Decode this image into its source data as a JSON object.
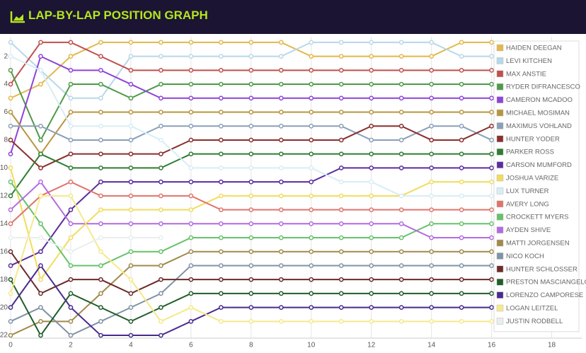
{
  "chart_data": {
    "type": "line",
    "title": "LAP-BY-LAP POSITION GRAPH",
    "x": [
      0,
      1,
      2,
      3,
      4,
      5,
      6,
      7,
      8,
      9,
      10,
      11,
      12,
      13,
      14,
      15,
      16
    ],
    "xlim": [
      0,
      19
    ],
    "xticks": [
      0,
      2,
      4,
      6,
      8,
      10,
      12,
      14,
      16,
      18
    ],
    "ylim": [
      22.2,
      0.6
    ],
    "yticks": [
      2,
      4,
      6,
      8,
      10,
      12,
      14,
      16,
      18,
      20,
      22
    ],
    "grid": true,
    "legend": "right",
    "series": [
      {
        "name": "HAIDEN DEEGAN",
        "color": "#e3b84a",
        "values": [
          5,
          4,
          2,
          1,
          1,
          1,
          1,
          1,
          1,
          1,
          2,
          2,
          2,
          2,
          2,
          1,
          1
        ]
      },
      {
        "name": "LEVI KITCHEN",
        "color": "#b7d8ea",
        "values": [
          1,
          3,
          5,
          5,
          2,
          2,
          2,
          2,
          2,
          2,
          1,
          1,
          1,
          1,
          1,
          2,
          2
        ]
      },
      {
        "name": "MAX ANSTIE",
        "color": "#c0504d",
        "values": [
          4,
          1,
          1,
          2,
          3,
          3,
          3,
          3,
          3,
          3,
          3,
          3,
          3,
          3,
          3,
          3,
          3
        ]
      },
      {
        "name": "RYDER DIFRANCESCO",
        "color": "#4e9a4a",
        "values": [
          3,
          8,
          4,
          4,
          5,
          4,
          4,
          4,
          4,
          4,
          4,
          4,
          4,
          4,
          4,
          4,
          4
        ]
      },
      {
        "name": "CAMERON MCADOO",
        "color": "#8e44d8",
        "values": [
          9,
          2,
          3,
          3,
          4,
          5,
          5,
          5,
          5,
          5,
          5,
          5,
          5,
          5,
          5,
          5,
          5
        ]
      },
      {
        "name": "MICHAEL MOSIMAN",
        "color": "#b8963e",
        "values": [
          6,
          9,
          6,
          6,
          6,
          6,
          6,
          6,
          6,
          6,
          6,
          6,
          6,
          6,
          6,
          6,
          6
        ]
      },
      {
        "name": "MAXIMUS VOHLAND",
        "color": "#8aa0b8",
        "values": [
          7,
          7,
          8,
          8,
          8,
          7,
          7,
          7,
          7,
          7,
          7,
          7,
          8,
          8,
          7,
          7,
          8
        ]
      },
      {
        "name": "HUNTER YODER",
        "color": "#8b2e2e",
        "values": [
          8,
          10,
          9,
          9,
          9,
          9,
          8,
          8,
          8,
          8,
          8,
          8,
          7,
          7,
          8,
          8,
          7
        ]
      },
      {
        "name": "PARKER ROSS",
        "color": "#2e7d32",
        "values": [
          12,
          9,
          10,
          10,
          10,
          10,
          9,
          9,
          9,
          9,
          9,
          9,
          9,
          9,
          9,
          9,
          9
        ]
      },
      {
        "name": "CARSON MUMFORD",
        "color": "#5b2c9e",
        "values": [
          17,
          16,
          13,
          11,
          11,
          11,
          11,
          11,
          11,
          11,
          11,
          10,
          10,
          10,
          10,
          10,
          10
        ]
      },
      {
        "name": "JOSHUA VARIZE",
        "color": "#f2dc5d",
        "values": [
          10,
          18,
          15,
          13,
          13,
          13,
          13,
          12,
          12,
          12,
          12,
          12,
          12,
          12,
          11,
          11,
          11
        ]
      },
      {
        "name": "LUX TURNER",
        "color": "#d7edf5",
        "values": [
          2,
          3,
          7,
          7,
          7,
          8,
          10,
          10,
          10,
          10,
          10,
          11,
          11,
          12,
          12,
          12,
          12
        ]
      },
      {
        "name": "AVERY LONG",
        "color": "#e0736b",
        "values": [
          14,
          12,
          11,
          12,
          12,
          12,
          12,
          13,
          13,
          13,
          13,
          13,
          13,
          13,
          13,
          13,
          13
        ]
      },
      {
        "name": "CROCKETT MYERS",
        "color": "#66c26a",
        "values": [
          11,
          14,
          17,
          17,
          16,
          16,
          15,
          15,
          15,
          15,
          15,
          15,
          15,
          15,
          14,
          14,
          14
        ]
      },
      {
        "name": "AYDEN SHIVE",
        "color": "#b36be0",
        "values": [
          13,
          11,
          14,
          14,
          14,
          14,
          14,
          14,
          14,
          14,
          14,
          14,
          14,
          14,
          15,
          15,
          15
        ]
      },
      {
        "name": "MATTI JORGENSEN",
        "color": "#a08a4a",
        "values": [
          22,
          21,
          21,
          19,
          17,
          17,
          16,
          16,
          16,
          16,
          16,
          16,
          16,
          16,
          16,
          16,
          16
        ]
      },
      {
        "name": "NICO KOCH",
        "color": "#7f93a6",
        "values": [
          21,
          20,
          22,
          21,
          20,
          19,
          17,
          17,
          17,
          17,
          17,
          17,
          17,
          17,
          17,
          17,
          17
        ]
      },
      {
        "name": "HUNTER SCHLOSSER",
        "color": "#6d2a2a",
        "values": [
          16,
          19,
          18,
          18,
          19,
          18,
          18,
          18,
          18,
          18,
          18,
          18,
          18,
          18,
          18,
          18,
          18
        ]
      },
      {
        "name": "PRESTON MASCIANGELO",
        "color": "#1f5e2a",
        "values": [
          18,
          22,
          19,
          20,
          21,
          20,
          19,
          19,
          19,
          19,
          19,
          19,
          19,
          19,
          19,
          19,
          19
        ]
      },
      {
        "name": "LORENZO CAMPORESE",
        "color": "#4a2a8e",
        "values": [
          20,
          17,
          20,
          22,
          22,
          22,
          21,
          20,
          20,
          20,
          20,
          20,
          20,
          20,
          20,
          20,
          20
        ]
      },
      {
        "name": "LOGAN LEITZEL",
        "color": "#f5e98a",
        "values": [
          19,
          12,
          12,
          16,
          18,
          21,
          20,
          21,
          21,
          21,
          21,
          21,
          21,
          21,
          21,
          21,
          21
        ]
      },
      {
        "name": "JUSTIN RODBELL",
        "color": "#e8eef0",
        "values": [
          15,
          15,
          16,
          15,
          15,
          15,
          null,
          null,
          null,
          null,
          null,
          null,
          null,
          null,
          null,
          null,
          null
        ]
      }
    ]
  }
}
